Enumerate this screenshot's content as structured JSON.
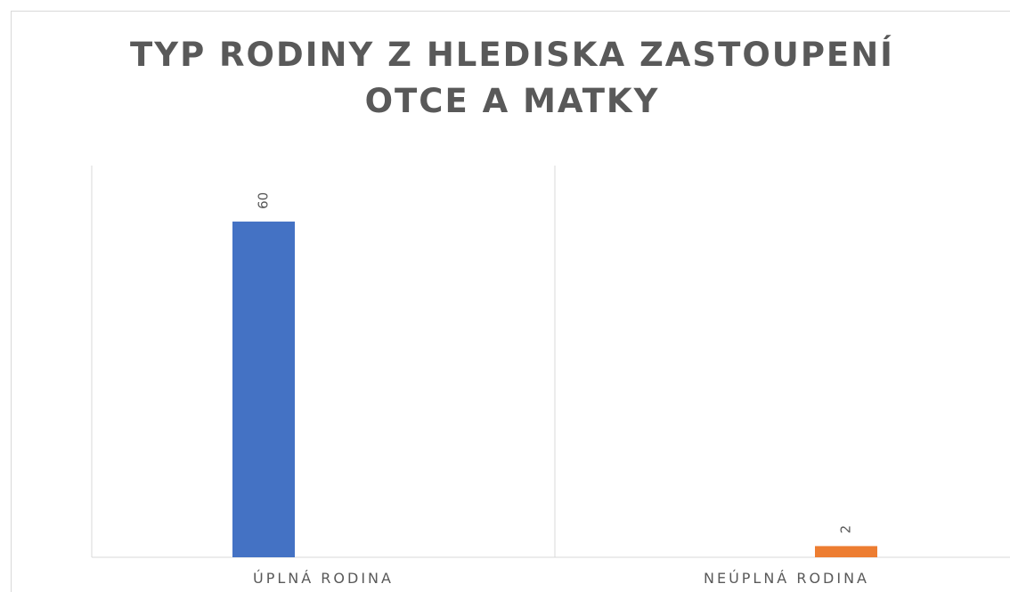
{
  "chart_data": {
    "type": "bar",
    "title": "TYP RODINY Z HLEDISKA ZASTOUPENÍ OTCE A MATKY",
    "categories": [
      "ÚPLNÁ RODINA",
      "NEÚPLNÁ RODINA"
    ],
    "series": [
      {
        "color": "#4472c4",
        "values": [
          60,
          null
        ]
      },
      {
        "color": "#ed7d31",
        "values": [
          null,
          2
        ]
      }
    ],
    "ylim": [
      0,
      70
    ]
  }
}
